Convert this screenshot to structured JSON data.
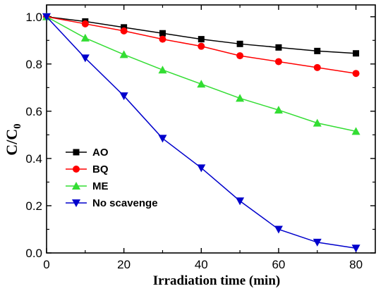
{
  "chart_data": {
    "type": "line",
    "title": "",
    "xlabel": "Irradiation time (min)",
    "ylabel_main": "C/C",
    "ylabel_sub": "0",
    "xlim": [
      0,
      85
    ],
    "ylim": [
      0,
      1.05
    ],
    "x_ticks": [
      0,
      20,
      40,
      60,
      80
    ],
    "x_tick_labels": [
      "0",
      "20",
      "40",
      "60",
      "80"
    ],
    "y_ticks": [
      0.0,
      0.2,
      0.4,
      0.6,
      0.8,
      1.0
    ],
    "y_tick_labels": [
      "0.0",
      "0.2",
      "0.4",
      "0.6",
      "0.8",
      "1.0"
    ],
    "grid": false,
    "legend_position": "bottom-left",
    "x": [
      0,
      10,
      20,
      30,
      40,
      50,
      60,
      70,
      80
    ],
    "series": [
      {
        "name": "AO",
        "marker": "square",
        "color": "#000000",
        "values": [
          1.0,
          0.98,
          0.955,
          0.93,
          0.905,
          0.885,
          0.87,
          0.855,
          0.845
        ]
      },
      {
        "name": "BQ",
        "marker": "circle",
        "color": "#ff0000",
        "values": [
          1.0,
          0.97,
          0.94,
          0.905,
          0.875,
          0.835,
          0.81,
          0.785,
          0.76
        ]
      },
      {
        "name": "ME",
        "marker": "triangle-up",
        "color": "#33dd33",
        "values": [
          1.0,
          0.91,
          0.84,
          0.775,
          0.715,
          0.655,
          0.605,
          0.55,
          0.515
        ]
      },
      {
        "name": "No scavenge",
        "marker": "triangle-down",
        "color": "#0000cc",
        "values": [
          1.0,
          0.825,
          0.665,
          0.485,
          0.36,
          0.22,
          0.1,
          0.045,
          0.02
        ]
      }
    ]
  }
}
